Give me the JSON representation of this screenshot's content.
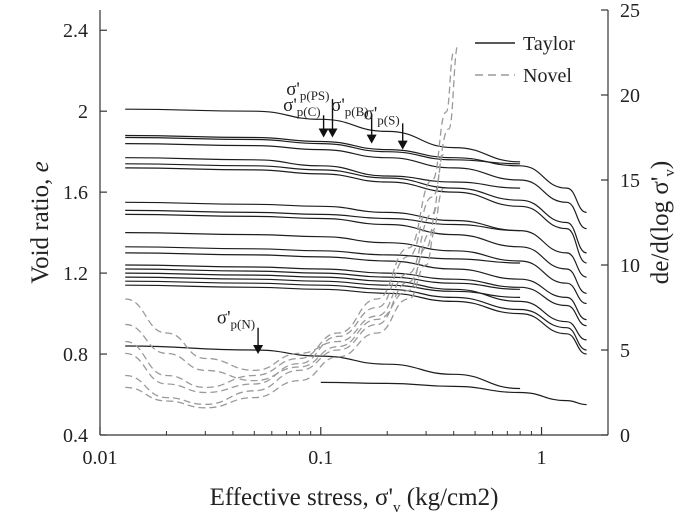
{
  "chart_data": {
    "type": "line",
    "xscale": "log",
    "xlim": [
      0.01,
      2
    ],
    "ylim_left": [
      0.4,
      2.5
    ],
    "ylim_right": [
      0,
      25
    ],
    "xlabel": "Effective stress, σ'v (kg/cm2)",
    "xlabel_main": "Effective stress, σ'",
    "xlabel_sub": "v",
    "xlabel_unit": " (kg/cm2)",
    "ylabel_left_main": "Void ratio, ",
    "ylabel_left_var": "e",
    "ylabel_right_main": "de/d(log σ'",
    "ylabel_right_sub": "v",
    "ylabel_right_close": ")",
    "x_ticks": [
      0.01,
      0.1,
      1
    ],
    "x_tick_labels": [
      "0.01",
      "0.1",
      "1"
    ],
    "y_ticks_left": [
      0.4,
      0.8,
      1.2,
      1.6,
      2.0,
      2.4
    ],
    "y_tick_labels_left": [
      "0.4",
      "0.8",
      "1.2",
      "1.6",
      "2",
      "2.4"
    ],
    "y_ticks_right": [
      0,
      5,
      10,
      15,
      20,
      25
    ],
    "y_tick_labels_right": [
      "0",
      "5",
      "10",
      "15",
      "20",
      "25"
    ],
    "grid": false,
    "legend": {
      "placement": "top-right",
      "entries": [
        {
          "label": "Taylor",
          "style": "solid",
          "color": "#222222"
        },
        {
          "label": "Novel",
          "style": "dashed",
          "color": "#9a9a9a"
        }
      ]
    },
    "annotations": [
      {
        "symbol": "σ'",
        "sub": "p(C)",
        "x": 0.103,
        "y_top": 1.98,
        "y_tip": 1.87
      },
      {
        "symbol": "σ'",
        "sub": "p(PS)",
        "x": 0.113,
        "y_top": 2.06,
        "y_tip": 1.87
      },
      {
        "symbol": "σ'",
        "sub": "p(B)",
        "x": 0.17,
        "y_top": 1.98,
        "y_tip": 1.84
      },
      {
        "symbol": "σ'",
        "sub": "p(S)",
        "x": 0.235,
        "y_top": 1.94,
        "y_tip": 1.81
      },
      {
        "symbol": "σ'",
        "sub": "p(N)",
        "x": 0.052,
        "y_top": 0.93,
        "y_tip": 0.8
      }
    ],
    "series": [
      {
        "style": "solid",
        "axis": "left",
        "values": [
          [
            0.013,
            2.01
          ],
          [
            0.05,
            2.0
          ],
          [
            0.1,
            1.96
          ],
          [
            0.2,
            1.9
          ],
          [
            0.4,
            1.82
          ],
          [
            0.8,
            1.75
          ]
        ]
      },
      {
        "style": "solid",
        "axis": "left",
        "values": [
          [
            0.013,
            1.88
          ],
          [
            0.05,
            1.87
          ],
          [
            0.1,
            1.85
          ],
          [
            0.2,
            1.81
          ],
          [
            0.4,
            1.77
          ],
          [
            0.8,
            1.73
          ],
          [
            1.3,
            1.62
          ],
          [
            1.6,
            1.5
          ]
        ]
      },
      {
        "style": "solid",
        "axis": "left",
        "values": [
          [
            0.013,
            1.87
          ],
          [
            0.05,
            1.86
          ],
          [
            0.1,
            1.84
          ],
          [
            0.2,
            1.8
          ],
          [
            0.4,
            1.76
          ],
          [
            0.8,
            1.74
          ]
        ]
      },
      {
        "style": "solid",
        "axis": "left",
        "values": [
          [
            0.013,
            1.84
          ],
          [
            0.05,
            1.83
          ],
          [
            0.1,
            1.81
          ],
          [
            0.2,
            1.77
          ],
          [
            0.4,
            1.72
          ],
          [
            0.8,
            1.66
          ],
          [
            1.3,
            1.55
          ],
          [
            1.6,
            1.42
          ]
        ]
      },
      {
        "style": "solid",
        "axis": "left",
        "values": [
          [
            0.013,
            1.77
          ],
          [
            0.05,
            1.76
          ],
          [
            0.1,
            1.73
          ],
          [
            0.2,
            1.68
          ],
          [
            0.4,
            1.65
          ],
          [
            0.8,
            1.62
          ]
        ]
      },
      {
        "style": "solid",
        "axis": "left",
        "values": [
          [
            0.013,
            1.74
          ],
          [
            0.05,
            1.73
          ],
          [
            0.1,
            1.71
          ],
          [
            0.2,
            1.67
          ],
          [
            0.4,
            1.62
          ],
          [
            0.8,
            1.56
          ],
          [
            1.3,
            1.45
          ],
          [
            1.6,
            1.3
          ]
        ]
      },
      {
        "style": "solid",
        "axis": "left",
        "values": [
          [
            0.013,
            1.72
          ],
          [
            0.05,
            1.71
          ],
          [
            0.1,
            1.69
          ],
          [
            0.2,
            1.65
          ],
          [
            0.4,
            1.6
          ],
          [
            0.8,
            1.53
          ],
          [
            1.3,
            1.42
          ],
          [
            1.6,
            1.25
          ]
        ]
      },
      {
        "style": "solid",
        "axis": "left",
        "values": [
          [
            0.013,
            1.55
          ],
          [
            0.05,
            1.54
          ],
          [
            0.1,
            1.53
          ],
          [
            0.2,
            1.5
          ],
          [
            0.4,
            1.46
          ],
          [
            0.8,
            1.41
          ],
          [
            1.3,
            1.3
          ],
          [
            1.6,
            1.18
          ]
        ]
      },
      {
        "style": "solid",
        "axis": "left",
        "values": [
          [
            0.013,
            1.51
          ],
          [
            0.05,
            1.5
          ],
          [
            0.1,
            1.49
          ],
          [
            0.2,
            1.47
          ],
          [
            0.4,
            1.44
          ],
          [
            0.8,
            1.41
          ]
        ]
      },
      {
        "style": "solid",
        "axis": "left",
        "values": [
          [
            0.013,
            1.49
          ],
          [
            0.05,
            1.48
          ],
          [
            0.1,
            1.47
          ],
          [
            0.2,
            1.44
          ],
          [
            0.4,
            1.39
          ],
          [
            0.8,
            1.33
          ],
          [
            1.3,
            1.22
          ],
          [
            1.6,
            1.1
          ]
        ]
      },
      {
        "style": "solid",
        "axis": "left",
        "values": [
          [
            0.013,
            1.4
          ],
          [
            0.05,
            1.39
          ],
          [
            0.1,
            1.38
          ],
          [
            0.2,
            1.35
          ],
          [
            0.4,
            1.31
          ],
          [
            0.8,
            1.26
          ],
          [
            1.3,
            1.15
          ],
          [
            1.6,
            1.05
          ]
        ]
      },
      {
        "style": "solid",
        "axis": "left",
        "values": [
          [
            0.013,
            1.33
          ],
          [
            0.05,
            1.32
          ],
          [
            0.1,
            1.31
          ],
          [
            0.2,
            1.29
          ],
          [
            0.4,
            1.27
          ],
          [
            0.8,
            1.25
          ]
        ]
      },
      {
        "style": "solid",
        "axis": "left",
        "values": [
          [
            0.013,
            1.3
          ],
          [
            0.05,
            1.29
          ],
          [
            0.1,
            1.28
          ],
          [
            0.2,
            1.26
          ],
          [
            0.4,
            1.22
          ],
          [
            0.8,
            1.17
          ],
          [
            1.3,
            1.08
          ],
          [
            1.6,
            0.97
          ]
        ]
      },
      {
        "style": "solid",
        "axis": "left",
        "values": [
          [
            0.013,
            1.24
          ],
          [
            0.05,
            1.23
          ],
          [
            0.1,
            1.22
          ],
          [
            0.2,
            1.2
          ],
          [
            0.4,
            1.17
          ],
          [
            0.8,
            1.13
          ],
          [
            1.3,
            1.04
          ],
          [
            1.6,
            0.94
          ]
        ]
      },
      {
        "style": "solid",
        "axis": "left",
        "values": [
          [
            0.013,
            1.22
          ],
          [
            0.05,
            1.21
          ],
          [
            0.1,
            1.2
          ],
          [
            0.2,
            1.18
          ],
          [
            0.4,
            1.15
          ],
          [
            0.8,
            1.12
          ]
        ]
      },
      {
        "style": "solid",
        "axis": "left",
        "values": [
          [
            0.013,
            1.2
          ],
          [
            0.05,
            1.19
          ],
          [
            0.1,
            1.18
          ],
          [
            0.2,
            1.16
          ],
          [
            0.4,
            1.12
          ],
          [
            0.8,
            1.06
          ],
          [
            1.3,
            0.96
          ],
          [
            1.6,
            0.87
          ]
        ]
      },
      {
        "style": "solid",
        "axis": "left",
        "values": [
          [
            0.013,
            1.18
          ],
          [
            0.05,
            1.17
          ],
          [
            0.1,
            1.16
          ],
          [
            0.2,
            1.14
          ],
          [
            0.4,
            1.11
          ],
          [
            0.8,
            1.08
          ]
        ]
      },
      {
        "style": "solid",
        "axis": "left",
        "values": [
          [
            0.013,
            1.16
          ],
          [
            0.05,
            1.15
          ],
          [
            0.1,
            1.14
          ],
          [
            0.2,
            1.12
          ],
          [
            0.4,
            1.08
          ],
          [
            0.8,
            1.02
          ],
          [
            1.3,
            0.93
          ],
          [
            1.6,
            0.82
          ]
        ]
      },
      {
        "style": "solid",
        "axis": "left",
        "values": [
          [
            0.013,
            1.14
          ],
          [
            0.05,
            1.13
          ],
          [
            0.1,
            1.12
          ],
          [
            0.2,
            1.1
          ],
          [
            0.4,
            1.06
          ],
          [
            0.8,
            1.0
          ],
          [
            1.3,
            0.9
          ],
          [
            1.6,
            0.8
          ]
        ]
      },
      {
        "style": "solid",
        "axis": "left",
        "values": [
          [
            0.013,
            0.84
          ],
          [
            0.05,
            0.82
          ],
          [
            0.1,
            0.79
          ],
          [
            0.2,
            0.75
          ],
          [
            0.4,
            0.7
          ],
          [
            0.8,
            0.63
          ]
        ]
      },
      {
        "style": "solid",
        "axis": "left",
        "values": [
          [
            0.1,
            0.66
          ],
          [
            0.2,
            0.655
          ],
          [
            0.4,
            0.64
          ],
          [
            0.8,
            0.61
          ],
          [
            1.3,
            0.57
          ],
          [
            1.6,
            0.55
          ]
        ]
      },
      {
        "style": "dashed",
        "axis": "right",
        "values": [
          [
            0.013,
            5.5
          ],
          [
            0.02,
            3.5
          ],
          [
            0.03,
            2.8
          ],
          [
            0.05,
            3.5
          ],
          [
            0.08,
            4.5
          ],
          [
            0.12,
            6.0
          ],
          [
            0.18,
            8.0
          ],
          [
            0.25,
            11.0
          ],
          [
            0.32,
            15.0
          ],
          [
            0.37,
            19.0
          ],
          [
            0.4,
            22.5
          ]
        ]
      },
      {
        "style": "dashed",
        "axis": "right",
        "values": [
          [
            0.013,
            4.8
          ],
          [
            0.02,
            3.0
          ],
          [
            0.03,
            2.5
          ],
          [
            0.05,
            3.0
          ],
          [
            0.08,
            4.2
          ],
          [
            0.12,
            5.8
          ],
          [
            0.18,
            7.5
          ],
          [
            0.25,
            10.5
          ],
          [
            0.32,
            14.0
          ],
          [
            0.38,
            18.0
          ],
          [
            0.42,
            23.0
          ]
        ]
      },
      {
        "style": "dashed",
        "axis": "right",
        "values": [
          [
            0.013,
            8.0
          ],
          [
            0.02,
            6.0
          ],
          [
            0.03,
            4.5
          ],
          [
            0.05,
            3.8
          ],
          [
            0.08,
            4.8
          ],
          [
            0.12,
            5.5
          ],
          [
            0.18,
            7.0
          ],
          [
            0.25,
            9.5
          ],
          [
            0.32,
            13.0
          ],
          [
            0.36,
            16.5
          ]
        ]
      },
      {
        "style": "dashed",
        "axis": "right",
        "values": [
          [
            0.013,
            3.5
          ],
          [
            0.02,
            2.2
          ],
          [
            0.03,
            1.8
          ],
          [
            0.05,
            2.6
          ],
          [
            0.08,
            3.8
          ],
          [
            0.12,
            5.0
          ],
          [
            0.18,
            6.5
          ],
          [
            0.25,
            9.0
          ],
          [
            0.32,
            12.0
          ],
          [
            0.36,
            14.5
          ]
        ]
      },
      {
        "style": "dashed",
        "axis": "right",
        "values": [
          [
            0.013,
            6.5
          ],
          [
            0.02,
            4.8
          ],
          [
            0.03,
            3.8
          ],
          [
            0.05,
            3.2
          ],
          [
            0.08,
            4.0
          ],
          [
            0.12,
            5.2
          ],
          [
            0.18,
            6.8
          ],
          [
            0.25,
            8.5
          ],
          [
            0.3,
            11.0
          ],
          [
            0.34,
            13.5
          ]
        ]
      },
      {
        "style": "dashed",
        "axis": "right",
        "values": [
          [
            0.013,
            2.8
          ],
          [
            0.02,
            2.0
          ],
          [
            0.03,
            1.6
          ],
          [
            0.05,
            2.2
          ],
          [
            0.08,
            3.2
          ],
          [
            0.12,
            4.6
          ],
          [
            0.18,
            6.0
          ],
          [
            0.25,
            8.0
          ],
          [
            0.3,
            10.0
          ],
          [
            0.33,
            12.0
          ]
        ]
      }
    ]
  }
}
